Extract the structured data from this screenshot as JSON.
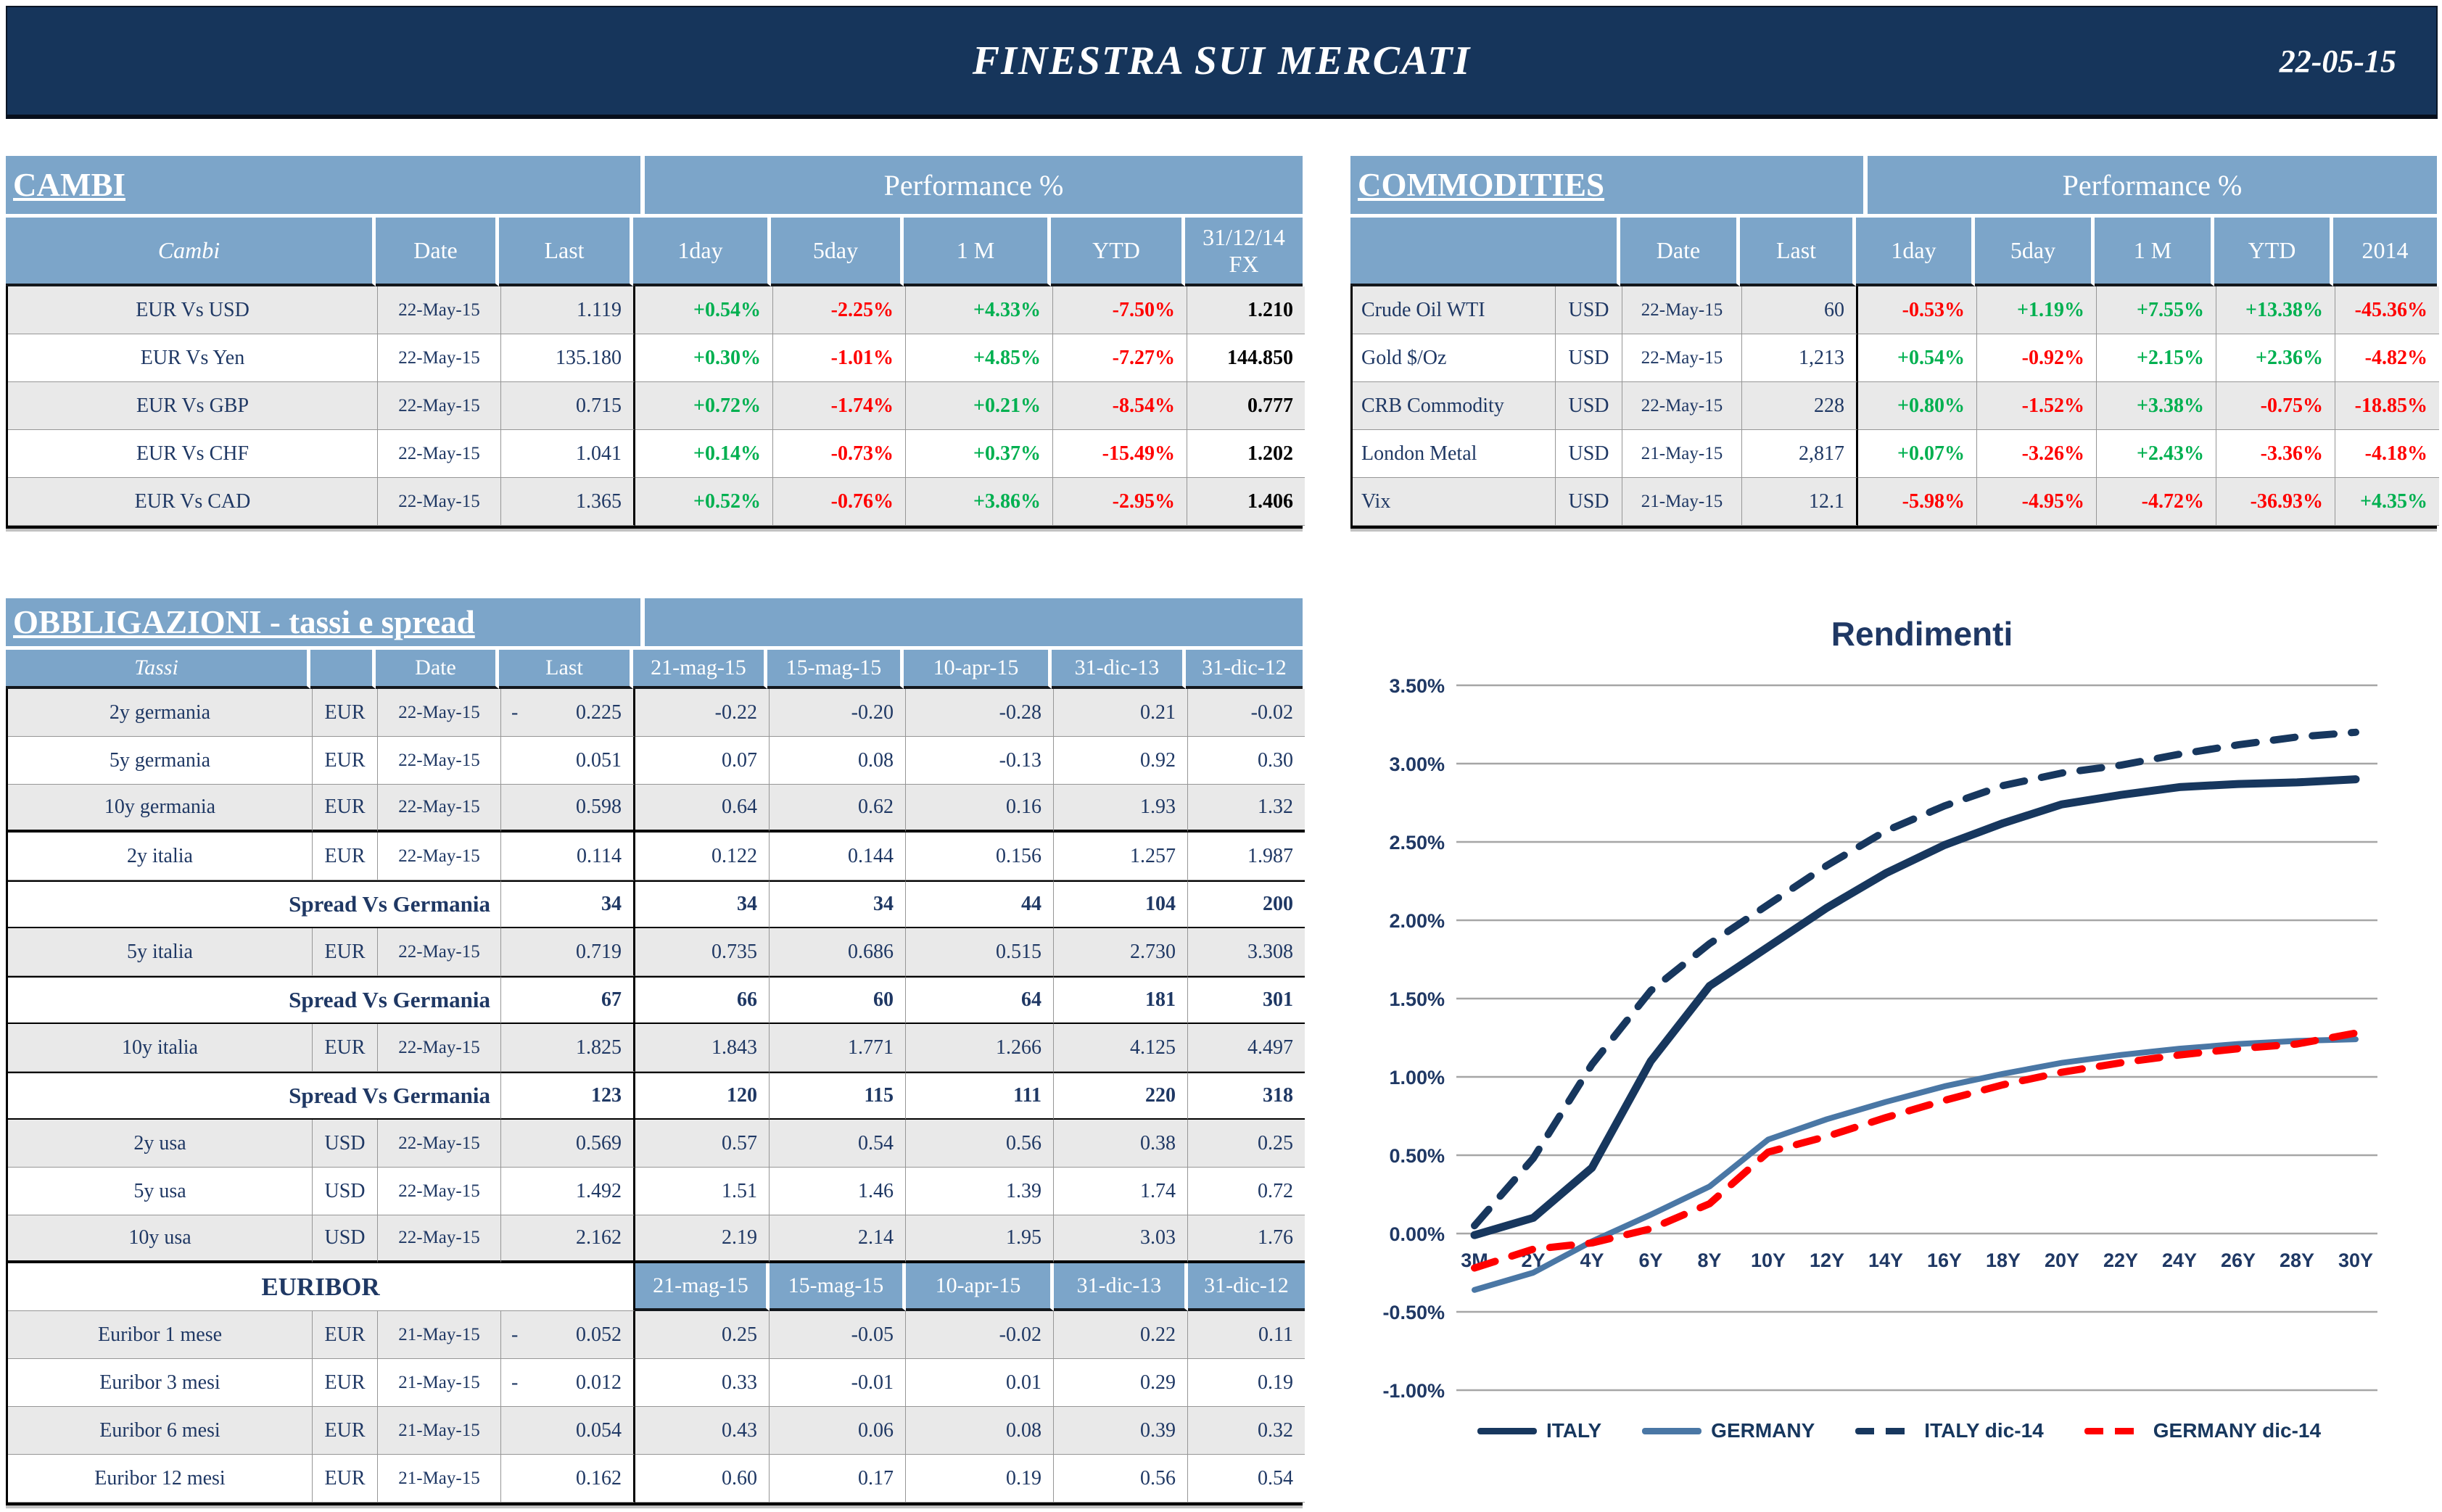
{
  "header": {
    "title": "FINESTRA SUI MERCATI",
    "date": "22-05-15"
  },
  "colors": {
    "band_navy": "#16355B",
    "header_blue": "#7CA5C9",
    "row_gray": "#E9E9E9",
    "text_navy": "#1F3864",
    "positive_green": "#00B050",
    "negative_red": "#FF0000",
    "grid_gray": "#A6A6A6",
    "italy_navy": "#17375E",
    "germany_blue": "#4A77A5"
  },
  "cambi": {
    "section_title": "CAMBI",
    "performance_title": "Performance %",
    "columns": [
      "Cambi",
      "Date",
      "Last",
      "1day",
      "5day",
      "1 M",
      "YTD",
      "31/12/14\nFX"
    ],
    "rows": [
      {
        "label": "EUR Vs USD",
        "date": "22-May-15",
        "last": "1.119",
        "perf": [
          "+0.54%",
          "-2.25%",
          "+4.33%",
          "-7.50%"
        ],
        "fx": "1.210"
      },
      {
        "label": "EUR Vs Yen",
        "date": "22-May-15",
        "last": "135.180",
        "perf": [
          "+0.30%",
          "-1.01%",
          "+4.85%",
          "-7.27%"
        ],
        "fx": "144.850"
      },
      {
        "label": "EUR Vs GBP",
        "date": "22-May-15",
        "last": "0.715",
        "perf": [
          "+0.72%",
          "-1.74%",
          "+0.21%",
          "-8.54%"
        ],
        "fx": "0.777"
      },
      {
        "label": "EUR Vs CHF",
        "date": "22-May-15",
        "last": "1.041",
        "perf": [
          "+0.14%",
          "-0.73%",
          "+0.37%",
          "-15.49%"
        ],
        "fx": "1.202"
      },
      {
        "label": "EUR Vs CAD",
        "date": "22-May-15",
        "last": "1.365",
        "perf": [
          "+0.52%",
          "-0.76%",
          "+3.86%",
          "-2.95%"
        ],
        "fx": "1.406"
      }
    ]
  },
  "commodities": {
    "section_title": "COMMODITIES",
    "performance_title": "Performance %",
    "columns": [
      "",
      "Date",
      "Last",
      "1day",
      "5day",
      "1 M",
      "YTD",
      "2014"
    ],
    "rows": [
      {
        "label": "Crude Oil WTI",
        "ccy": "USD",
        "date": "22-May-15",
        "last": "60",
        "perf": [
          "-0.53%",
          "+1.19%",
          "+7.55%",
          "+13.38%",
          "-45.36%"
        ]
      },
      {
        "label": "Gold $/Oz",
        "ccy": "USD",
        "date": "22-May-15",
        "last": "1,213",
        "perf": [
          "+0.54%",
          "-0.92%",
          "+2.15%",
          "+2.36%",
          "-4.82%"
        ]
      },
      {
        "label": "CRB Commodity",
        "ccy": "USD",
        "date": "22-May-15",
        "last": "228",
        "perf": [
          "+0.80%",
          "-1.52%",
          "+3.38%",
          "-0.75%",
          "-18.85%"
        ]
      },
      {
        "label": "London Metal",
        "ccy": "USD",
        "date": "21-May-15",
        "last": "2,817",
        "perf": [
          "+0.07%",
          "-3.26%",
          "+2.43%",
          "-3.36%",
          "-4.18%"
        ]
      },
      {
        "label": "Vix",
        "ccy": "USD",
        "date": "21-May-15",
        "last": "12.1",
        "perf": [
          "-5.98%",
          "-4.95%",
          "-4.72%",
          "-36.93%",
          "+4.35%"
        ]
      }
    ]
  },
  "bonds": {
    "section_title": "OBBLIGAZIONI - tassi e spread",
    "columns_main": [
      "Tassi",
      "",
      "Date",
      "Last"
    ],
    "history_columns": [
      "21-mag-15",
      "15-mag-15",
      "10-apr-15",
      "31-dic-13",
      "31-dic-12"
    ],
    "euribor_label": "EURIBOR",
    "rows": [
      {
        "type": "rate",
        "label": "2y germania",
        "ccy": "EUR",
        "date": "22-May-15",
        "last": "0.225",
        "last_neg": true,
        "values": [
          "-0.22",
          "-0.20",
          "-0.28",
          "0.21",
          "-0.02"
        ],
        "shade": true
      },
      {
        "type": "rate",
        "label": "5y germania",
        "ccy": "EUR",
        "date": "22-May-15",
        "last": "0.051",
        "last_neg": false,
        "values": [
          "0.07",
          "0.08",
          "-0.13",
          "0.92",
          "0.30"
        ],
        "shade": false
      },
      {
        "type": "rate",
        "label": "10y germania",
        "ccy": "EUR",
        "date": "22-May-15",
        "last": "0.598",
        "last_neg": false,
        "values": [
          "0.64",
          "0.62",
          "0.16",
          "1.93",
          "1.32"
        ],
        "shade": true,
        "thick": true
      },
      {
        "type": "rate",
        "label": "2y italia",
        "ccy": "EUR",
        "date": "22-May-15",
        "last": "0.114",
        "last_neg": false,
        "values": [
          "0.122",
          "0.144",
          "0.156",
          "1.257",
          "1.987"
        ],
        "shade": false
      },
      {
        "type": "spread",
        "label": "Spread Vs Germania",
        "last": "34",
        "values": [
          "34",
          "34",
          "44",
          "104",
          "200"
        ]
      },
      {
        "type": "rate",
        "label": "5y italia",
        "ccy": "EUR",
        "date": "22-May-15",
        "last": "0.719",
        "last_neg": false,
        "values": [
          "0.735",
          "0.686",
          "0.515",
          "2.730",
          "3.308"
        ],
        "shade": true
      },
      {
        "type": "spread",
        "label": "Spread Vs Germania",
        "last": "67",
        "values": [
          "66",
          "60",
          "64",
          "181",
          "301"
        ]
      },
      {
        "type": "rate",
        "label": "10y italia",
        "ccy": "EUR",
        "date": "22-May-15",
        "last": "1.825",
        "last_neg": false,
        "values": [
          "1.843",
          "1.771",
          "1.266",
          "4.125",
          "4.497"
        ],
        "shade": true
      },
      {
        "type": "spread",
        "label": "Spread Vs Germania",
        "last": "123",
        "values": [
          "120",
          "115",
          "111",
          "220",
          "318"
        ],
        "thick": true
      },
      {
        "type": "rate",
        "label": "2y usa",
        "ccy": "USD",
        "date": "22-May-15",
        "last": "0.569",
        "last_neg": false,
        "values": [
          "0.57",
          "0.54",
          "0.56",
          "0.38",
          "0.25"
        ],
        "shade": true
      },
      {
        "type": "rate",
        "label": "5y usa",
        "ccy": "USD",
        "date": "22-May-15",
        "last": "1.492",
        "last_neg": false,
        "values": [
          "1.51",
          "1.46",
          "1.39",
          "1.74",
          "0.72"
        ],
        "shade": false
      },
      {
        "type": "rate",
        "label": "10y usa",
        "ccy": "USD",
        "date": "22-May-15",
        "last": "2.162",
        "last_neg": false,
        "values": [
          "2.19",
          "2.14",
          "1.95",
          "3.03",
          "1.76"
        ],
        "shade": true,
        "thick": true
      },
      {
        "type": "euribor_header"
      },
      {
        "type": "rate",
        "label": "Euribor 1 mese",
        "ccy": "EUR",
        "date": "21-May-15",
        "last": "0.052",
        "last_neg": true,
        "values": [
          "0.25",
          "-0.05",
          "-0.02",
          "0.22",
          "0.11"
        ],
        "shade": true
      },
      {
        "type": "rate",
        "label": "Euribor 3 mesi",
        "ccy": "EUR",
        "date": "21-May-15",
        "last": "0.012",
        "last_neg": true,
        "values": [
          "0.33",
          "-0.01",
          "0.01",
          "0.29",
          "0.19"
        ],
        "shade": false
      },
      {
        "type": "rate",
        "label": "Euribor 6 mesi",
        "ccy": "EUR",
        "date": "21-May-15",
        "last": "0.054",
        "last_neg": false,
        "values": [
          "0.43",
          "0.06",
          "0.08",
          "0.39",
          "0.32"
        ],
        "shade": true
      },
      {
        "type": "rate",
        "label": "Euribor 12 mesi",
        "ccy": "EUR",
        "date": "21-May-15",
        "last": "0.162",
        "last_neg": false,
        "values": [
          "0.60",
          "0.17",
          "0.19",
          "0.56",
          "0.54"
        ],
        "shade": false
      }
    ]
  },
  "chart_data": {
    "type": "line",
    "title": "Rendimenti",
    "categories": [
      "3M",
      "2Y",
      "4Y",
      "6Y",
      "8Y",
      "10Y",
      "12Y",
      "14Y",
      "16Y",
      "18Y",
      "20Y",
      "22Y",
      "24Y",
      "26Y",
      "28Y",
      "30Y"
    ],
    "series": [
      {
        "name": "GERMANY",
        "style": "solid",
        "color": "#4A77A5",
        "width": 8,
        "values": [
          -0.36,
          -0.25,
          -0.05,
          0.12,
          0.3,
          0.6,
          0.73,
          0.84,
          0.94,
          1.02,
          1.09,
          1.14,
          1.18,
          1.21,
          1.23,
          1.24
        ]
      },
      {
        "name": "GERMANY dic-14",
        "style": "dashed",
        "color": "#FF0000",
        "width": 10,
        "values": [
          -0.22,
          -0.1,
          -0.06,
          0.03,
          0.19,
          0.52,
          0.62,
          0.74,
          0.85,
          0.95,
          1.03,
          1.09,
          1.14,
          1.18,
          1.21,
          1.28
        ]
      },
      {
        "name": "ITALY dic-14",
        "style": "dashed",
        "color": "#17375E",
        "width": 10,
        "values": [
          0.05,
          0.48,
          1.08,
          1.55,
          1.85,
          2.1,
          2.35,
          2.57,
          2.73,
          2.86,
          2.94,
          2.99,
          3.06,
          3.12,
          3.17,
          3.2
        ]
      },
      {
        "name": "ITALY",
        "style": "solid",
        "color": "#17375E",
        "width": 11,
        "values": [
          -0.01,
          0.1,
          0.42,
          1.1,
          1.58,
          1.83,
          2.08,
          2.3,
          2.48,
          2.62,
          2.74,
          2.8,
          2.85,
          2.87,
          2.88,
          2.9
        ]
      }
    ],
    "legend_order": [
      "ITALY",
      "GERMANY",
      "ITALY dic-14",
      "GERMANY dic-14"
    ],
    "ylim": [
      -1.0,
      3.5
    ],
    "ytick_step": 0.5,
    "ytick_format": "0.00%",
    "grid": true,
    "legend_position": "bottom"
  }
}
